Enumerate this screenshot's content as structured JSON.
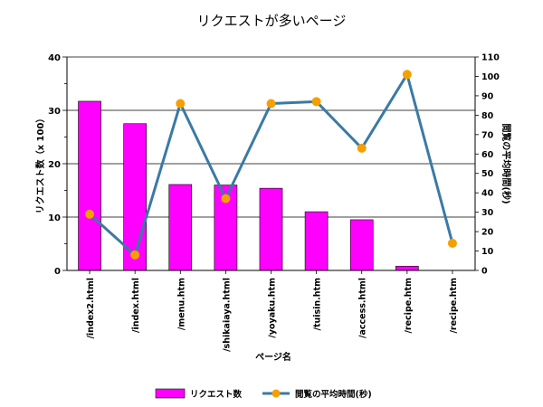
{
  "chart_data": {
    "type": "bar",
    "title": "リクエストが多いページ",
    "xlabel": "ページ名",
    "ylabel": "リクエスト数（x 100）",
    "y2label": "閲覧の平均時間(秒)",
    "categories": [
      "/index2.html",
      "/index.html",
      "/menu.htm",
      "/shikaiaya.html",
      "/yoyaku.htm",
      "/tuisin.htm",
      "/access.html",
      "/recipe.htm",
      "/recipe.htm"
    ],
    "ylim": [
      0,
      40
    ],
    "y_ticks": [
      0,
      10,
      20,
      30,
      40
    ],
    "y2lim": [
      0,
      110
    ],
    "y2_ticks": [
      0,
      10,
      20,
      30,
      40,
      50,
      60,
      70,
      80,
      90,
      100,
      110
    ],
    "grid": true,
    "legend_position": "bottom",
    "series": [
      {
        "name": "リクエスト数",
        "type": "bar",
        "axis": "left",
        "color": "#ff00ff",
        "values": [
          31.7,
          27.5,
          16.1,
          16.0,
          15.4,
          11.0,
          9.5,
          0.8,
          0
        ]
      },
      {
        "name": "閲覧の平均時間(秒)",
        "type": "line",
        "axis": "right",
        "color": "#3a7aa5",
        "marker_color": "#f5a000",
        "values": [
          29,
          8,
          86,
          37,
          86,
          87,
          63,
          101,
          14
        ]
      }
    ]
  }
}
